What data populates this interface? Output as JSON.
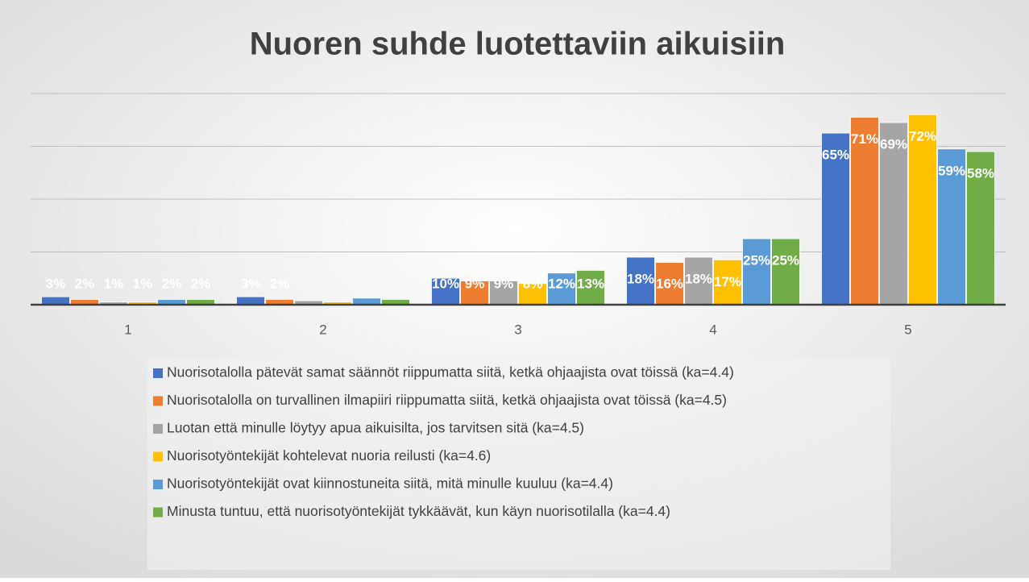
{
  "chart_data": {
    "type": "bar",
    "title": "Nuoren suhde luotettaviin aikuisiin",
    "categories": [
      "1",
      "2",
      "3",
      "4",
      "5"
    ],
    "ylim": [
      0,
      80
    ],
    "yticks": [
      0,
      20,
      40,
      60,
      80
    ],
    "grid": true,
    "series": [
      {
        "name": "Nuorisotalolla pätevät samat säännöt riippumatta siitä, ketkä ohjaajista ovat töissä (ka=4.4)",
        "color": "#4472c4",
        "values": [
          3,
          3,
          10,
          18,
          65
        ],
        "value_labels": [
          "3%",
          "3%",
          "10%",
          "18%",
          "65%"
        ]
      },
      {
        "name": "Nuorisotalolla on turvallinen ilmapiiri riippumatta siitä, ketkä ohjaajista ovat töissä (ka=4.5)",
        "color": "#ed7d31",
        "values": [
          2,
          2,
          9,
          16,
          71
        ],
        "value_labels": [
          "2%",
          "2%",
          "9%",
          "16%",
          "71%"
        ]
      },
      {
        "name": "Luotan että minulle löytyy apua aikuisilta, jos tarvitsen sitä (ka=4.5)",
        "color": "#a5a5a5",
        "values": [
          1,
          1.5,
          9,
          18,
          69
        ],
        "value_labels": [
          "1%",
          null,
          "9%",
          "18%",
          "69%"
        ]
      },
      {
        "name": "Nuorisotyöntekijät kohtelevat nuoria reilusti (ka=4.6)",
        "color": "#ffc000",
        "values": [
          1,
          1,
          8,
          17,
          72
        ],
        "value_labels": [
          "1%",
          null,
          "8%",
          "17%",
          "72%"
        ]
      },
      {
        "name": "Nuorisotyöntekijät ovat kiinnostuneita siitä, mitä minulle kuuluu (ka=4.4)",
        "color": "#5b9bd5",
        "values": [
          2,
          2.5,
          12,
          25,
          59
        ],
        "value_labels": [
          "2%",
          null,
          "12%",
          "25%",
          "59%"
        ]
      },
      {
        "name": "Minusta tuntuu, että nuorisotyöntekijät tykkäävät, kun käyn nuorisotilalla (ka=4.4)",
        "color": "#70ad47",
        "values": [
          2,
          2,
          13,
          25,
          58
        ],
        "value_labels": [
          "2%",
          null,
          "13%",
          "25%",
          "58%"
        ]
      }
    ]
  }
}
